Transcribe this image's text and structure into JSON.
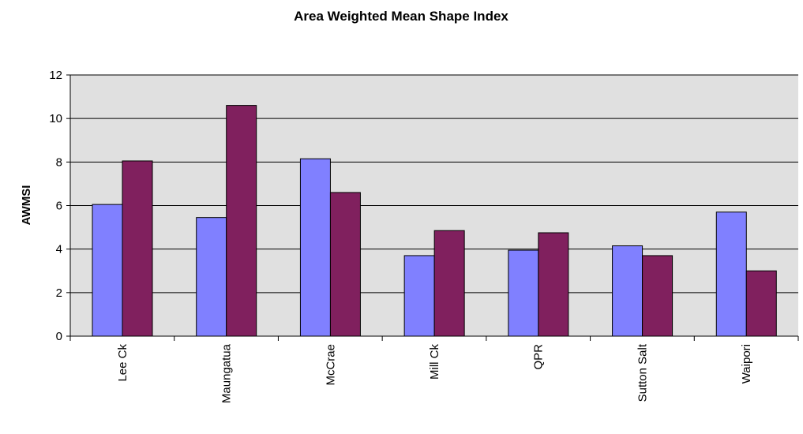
{
  "chart_data": {
    "type": "bar",
    "title": "Area Weighted Mean Shape Index",
    "xlabel": "",
    "ylabel": "AWMSI",
    "categories": [
      "Lee Ck",
      "Maungatua",
      "McCrae",
      "Mill Ck",
      "QPR",
      "Sutton Salt",
      "Waipori"
    ],
    "series": [
      {
        "values": [
          6.05,
          5.45,
          8.15,
          3.7,
          3.95,
          4.15,
          5.7
        ],
        "color": "#8080ff"
      },
      {
        "values": [
          8.05,
          10.6,
          6.6,
          4.85,
          4.75,
          3.7,
          3.0
        ],
        "color": "#80205e"
      }
    ],
    "ylim": [
      0,
      12
    ],
    "yticks": [
      0,
      2,
      4,
      6,
      8,
      10,
      12
    ],
    "grid": true,
    "plot_background": "#e0e0e0",
    "legend": "none"
  }
}
